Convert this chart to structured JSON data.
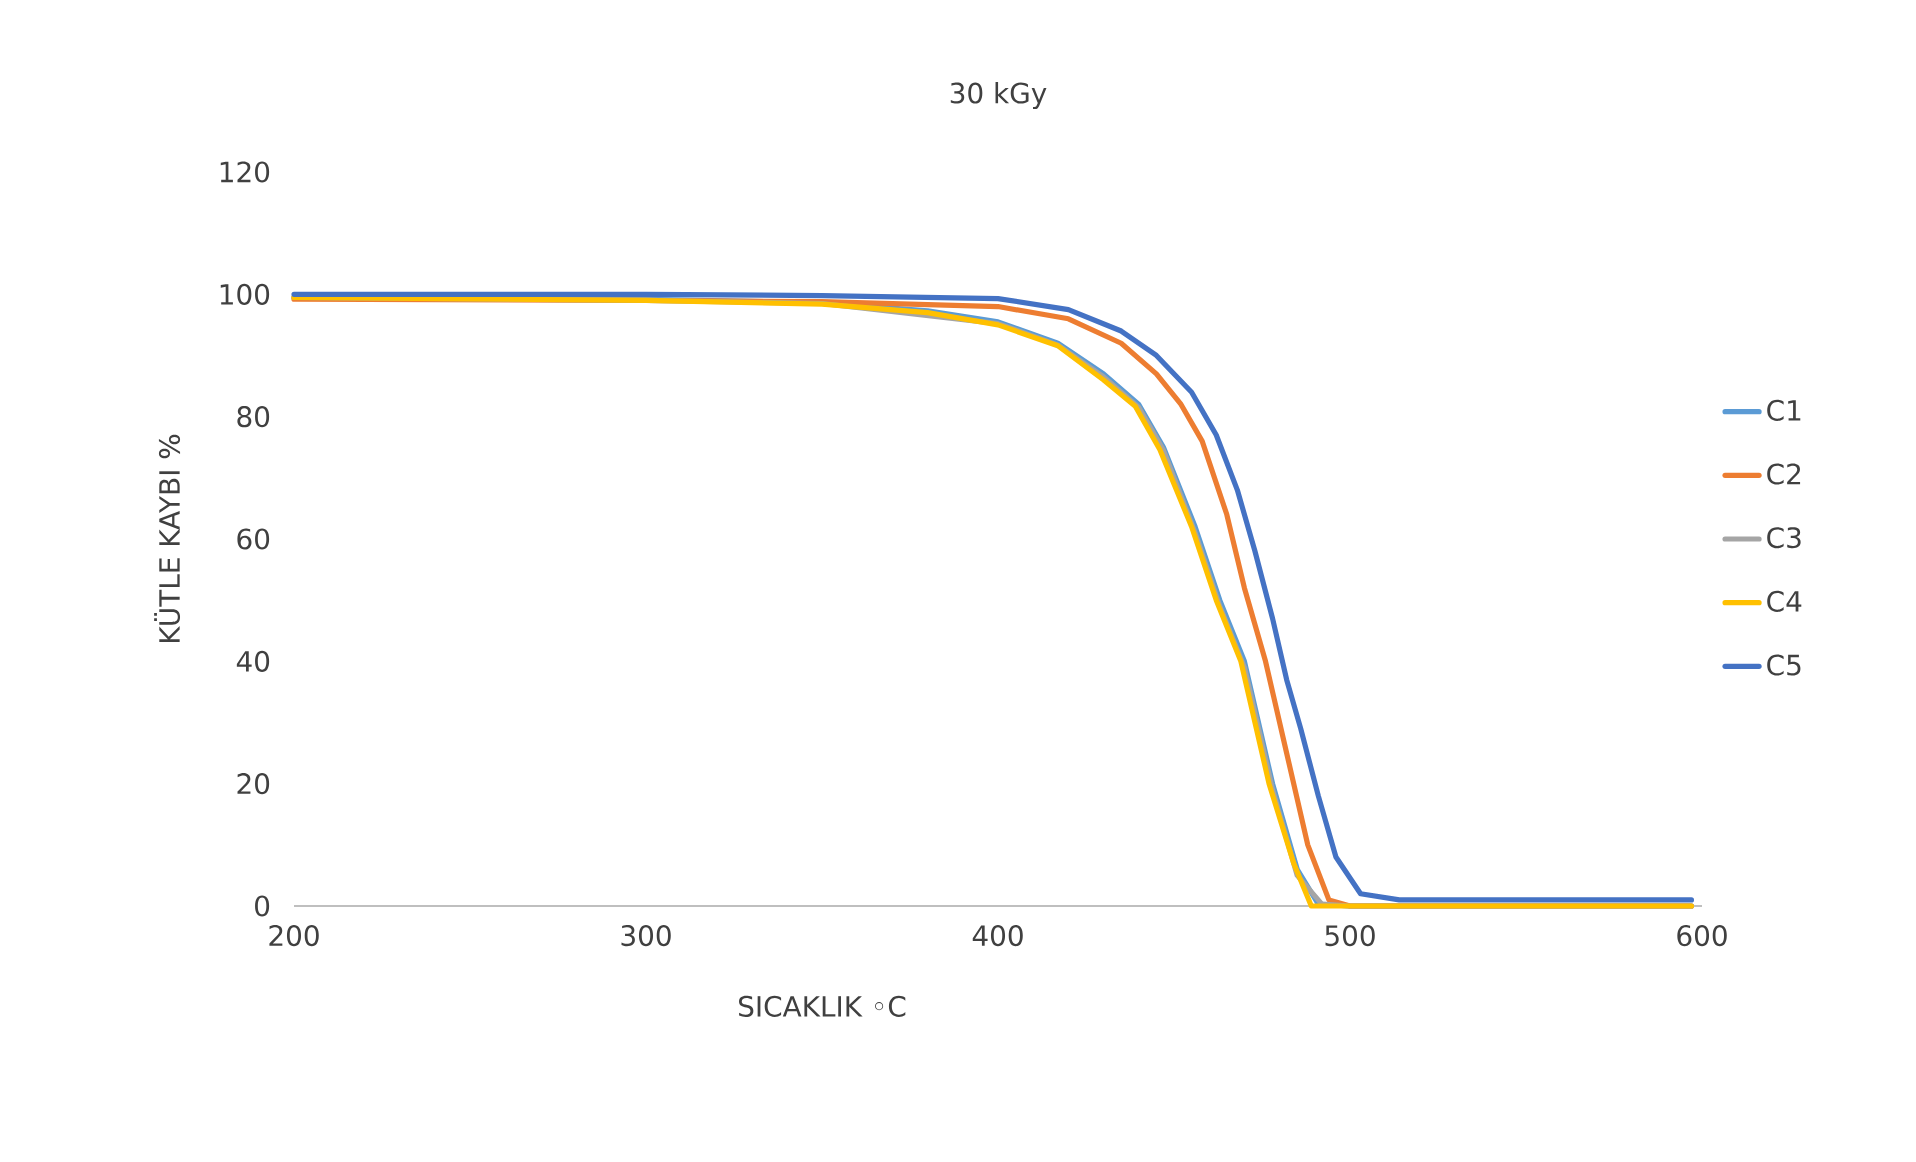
{
  "chart_data": {
    "type": "line",
    "title": "30 kGy",
    "xlabel": "SICAKLIK ◦C",
    "ylabel": "KÜTLE KAYBI %",
    "xlim": [
      200,
      600
    ],
    "xticks": [
      200,
      300,
      400,
      500,
      600
    ],
    "ylim": [
      0,
      120
    ],
    "yticks": [
      0,
      20,
      40,
      60,
      80,
      100,
      120
    ],
    "grid": false,
    "legend": "right",
    "marker": "none",
    "line_style": "solid",
    "series": [
      {
        "name": "C1",
        "color": "#5b9bd5",
        "x": [
          200,
          300,
          350,
          380,
          400,
          417,
          430,
          440,
          447,
          456,
          463,
          470,
          478,
          485,
          491,
          500,
          550,
          597
        ],
        "values": [
          99.5,
          99.2,
          98.6,
          97.3,
          95.5,
          92,
          87,
          82,
          75,
          62,
          50,
          40,
          20,
          6,
          0.3,
          0,
          0,
          0
        ]
      },
      {
        "name": "C2",
        "color": "#ed7d31",
        "x": [
          200,
          300,
          350,
          400,
          420,
          435,
          445,
          452,
          458,
          465,
          470,
          476,
          482,
          488,
          494,
          500,
          550,
          597
        ],
        "values": [
          99.2,
          99,
          98.8,
          98,
          96,
          92,
          87,
          82,
          76,
          64,
          52,
          40,
          25,
          10,
          1,
          0,
          0,
          0
        ]
      },
      {
        "name": "C3",
        "color": "#a5a5a5",
        "x": [
          200,
          300,
          350,
          400,
          417,
          430,
          440,
          447,
          456,
          463,
          470,
          478,
          485,
          492,
          500,
          550,
          597
        ],
        "values": [
          99.5,
          99,
          98.5,
          95.2,
          91.7,
          86.5,
          81.5,
          74.5,
          61,
          49,
          39,
          19,
          5,
          0.3,
          0,
          0,
          0
        ]
      },
      {
        "name": "C4",
        "color": "#ffc000",
        "x": [
          200,
          300,
          350,
          380,
          400,
          417,
          430,
          439,
          446,
          455,
          462,
          469,
          477,
          484,
          489,
          500,
          550,
          597
        ],
        "values": [
          99.5,
          99,
          98.4,
          97,
          95,
          91.6,
          86,
          81.7,
          74.6,
          62,
          50,
          40,
          20,
          7,
          0,
          0,
          0,
          0
        ]
      },
      {
        "name": "C5",
        "color": "#4472c4",
        "x": [
          200,
          300,
          350,
          400,
          420,
          435,
          445,
          455,
          462,
          468,
          473,
          478,
          482,
          486,
          491,
          496,
          503,
          514,
          550,
          597
        ],
        "values": [
          100,
          100,
          99.8,
          99.3,
          97.5,
          94,
          90,
          84,
          77,
          68,
          58,
          47,
          37,
          29,
          18,
          8,
          2,
          1,
          1,
          1
        ]
      }
    ]
  }
}
